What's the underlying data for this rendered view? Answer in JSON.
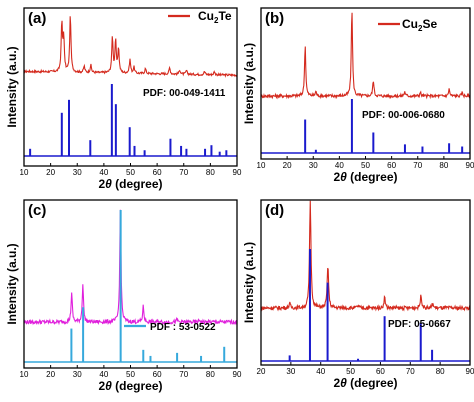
{
  "chart_data": [
    {
      "type": "line",
      "panel": "(a)",
      "xlim": [
        10,
        90
      ],
      "xticks": [
        "10",
        "20",
        "30",
        "40",
        "50",
        "60",
        "70",
        "80",
        "90"
      ],
      "xlabel_prefix": "2",
      "xlabel_symbol": "θ",
      "xlabel_suffix": " (degree)",
      "ylabel": "Intensity (a.u.)",
      "legend": {
        "position": "top-right",
        "base": "Cu",
        "sub": "2",
        "rest": "Te"
      },
      "pdf_label": "PDF: 00-049-1411",
      "colors": {
        "measured": "#d42a1e",
        "reference": "#1a1acd"
      },
      "series": [
        {
          "name": "Cu2Te",
          "peaks": [
            [
              24.2,
              0.78
            ],
            [
              24.9,
              0.55
            ],
            [
              27.4,
              0.92
            ],
            [
              32.6,
              0.1
            ],
            [
              35.1,
              0.12
            ],
            [
              43.2,
              0.58
            ],
            [
              44.4,
              0.52
            ],
            [
              45.5,
              0.4
            ],
            [
              49.8,
              0.22
            ],
            [
              51.3,
              0.1
            ],
            [
              55.6,
              0.08
            ],
            [
              64.7,
              0.1
            ],
            [
              68.5,
              0.07
            ],
            [
              71.0,
              0.06
            ],
            [
              77.8,
              0.05
            ],
            [
              81.5,
              0.05
            ]
          ]
        },
        {
          "name": "PDF: 00-049-1411",
          "peaks": [
            [
              12.3,
              0.1
            ],
            [
              24.2,
              0.6
            ],
            [
              26.9,
              0.78
            ],
            [
              34.9,
              0.22
            ],
            [
              43.0,
              1.0
            ],
            [
              44.5,
              0.72
            ],
            [
              49.7,
              0.4
            ],
            [
              51.5,
              0.14
            ],
            [
              55.3,
              0.08
            ],
            [
              65.0,
              0.24
            ],
            [
              69.0,
              0.14
            ],
            [
              71.0,
              0.1
            ],
            [
              78.0,
              0.1
            ],
            [
              80.4,
              0.15
            ],
            [
              83.5,
              0.06
            ],
            [
              86.0,
              0.08
            ]
          ]
        }
      ]
    },
    {
      "type": "line",
      "panel": "(b)",
      "xlim": [
        10,
        90
      ],
      "xticks": [
        "10",
        "20",
        "30",
        "40",
        "50",
        "60",
        "70",
        "80",
        "90"
      ],
      "xlabel_prefix": "2",
      "xlabel_symbol": "θ",
      "xlabel_suffix": " (degree)",
      "ylabel": "Intensity (a.u.)",
      "legend": {
        "position": "top-right",
        "base": "Cu",
        "sub": "2",
        "rest": "Se"
      },
      "pdf_label": "PDF: 00-006-0680",
      "colors": {
        "measured": "#d42a1e",
        "reference": "#1a1acd"
      },
      "series": [
        {
          "name": "Cu2Se",
          "peaks": [
            [
              26.9,
              0.58
            ],
            [
              31.0,
              0.05
            ],
            [
              44.8,
              1.0
            ],
            [
              53.0,
              0.18
            ],
            [
              65.0,
              0.05
            ],
            [
              71.0,
              0.04
            ],
            [
              82.0,
              0.08
            ],
            [
              87.0,
              0.04
            ]
          ]
        },
        {
          "name": "PDF: 00-006-0680",
          "peaks": [
            [
              26.9,
              0.62
            ],
            [
              31.0,
              0.06
            ],
            [
              44.8,
              1.0
            ],
            [
              53.0,
              0.38
            ],
            [
              65.1,
              0.16
            ],
            [
              71.8,
              0.12
            ],
            [
              82.0,
              0.18
            ],
            [
              87.0,
              0.12
            ]
          ]
        }
      ]
    },
    {
      "type": "line",
      "panel": "(c)",
      "xlim": [
        10,
        90
      ],
      "xticks": [
        "10",
        "20",
        "30",
        "40",
        "50",
        "60",
        "70",
        "80",
        "90"
      ],
      "xlabel_prefix": "2",
      "xlabel_symbol": "θ",
      "xlabel_suffix": " (degree)",
      "ylabel": "Intensity (a.u.)",
      "legend": {
        "position": "top-center",
        "base": "Cu",
        "sub": "2",
        "rest": "S"
      },
      "pdf_label": "PDF : 53-0522",
      "colors": {
        "measured": "#e020dc",
        "reference": "#36a9dc"
      },
      "series": [
        {
          "name": "Cu2S",
          "peaks": [
            [
              27.9,
              0.26
            ],
            [
              32.1,
              0.34
            ],
            [
              46.2,
              1.0
            ],
            [
              54.8,
              0.14
            ],
            [
              67.5,
              0.02
            ],
            [
              76.0,
              0.02
            ]
          ]
        },
        {
          "name": "PDF : 53-0522",
          "peaks": [
            [
              27.8,
              0.22
            ],
            [
              32.2,
              0.36
            ],
            [
              46.3,
              1.0
            ],
            [
              54.8,
              0.08
            ],
            [
              57.5,
              0.04
            ],
            [
              67.5,
              0.06
            ],
            [
              76.5,
              0.04
            ],
            [
              85.2,
              0.1
            ]
          ]
        }
      ]
    },
    {
      "type": "line",
      "panel": "(d)",
      "xlim": [
        20,
        90
      ],
      "xticks": [
        "20",
        "30",
        "40",
        "50",
        "60",
        "70",
        "80",
        "90"
      ],
      "xlabel_prefix": "2",
      "xlabel_symbol": "θ",
      "xlabel_suffix": " (degree)",
      "ylabel": "Intensity (a.u.)",
      "legend": {
        "position": "top-right",
        "base": "Cu",
        "sub": "2",
        "rest": "O"
      },
      "pdf_label": "PDF: 05-0667",
      "colors": {
        "measured": "#d42a1e",
        "reference": "#1a1acd"
      },
      "series": [
        {
          "name": "Cu2O",
          "peaks": [
            [
              29.6,
              0.04
            ],
            [
              36.5,
              1.0
            ],
            [
              42.4,
              0.4
            ],
            [
              52.5,
              0.02
            ],
            [
              61.4,
              0.1
            ],
            [
              73.6,
              0.12
            ],
            [
              77.5,
              0.04
            ]
          ]
        },
        {
          "name": "PDF: 05-0667",
          "peaks": [
            [
              29.6,
              0.05
            ],
            [
              36.4,
              1.0
            ],
            [
              42.3,
              0.7
            ],
            [
              52.5,
              0.02
            ],
            [
              61.4,
              0.4
            ],
            [
              73.5,
              0.34
            ],
            [
              77.3,
              0.1
            ]
          ]
        }
      ]
    }
  ]
}
